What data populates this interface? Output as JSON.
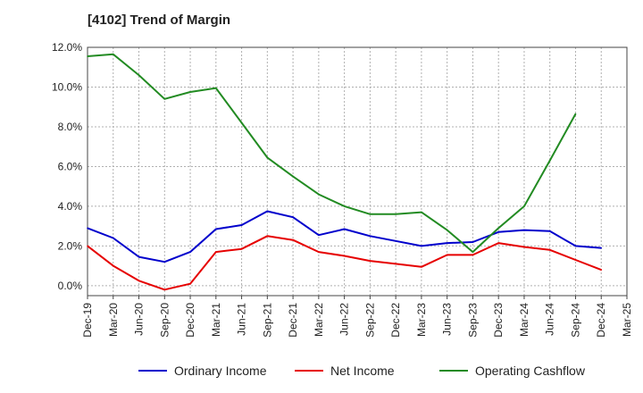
{
  "chart_data": {
    "type": "line",
    "title": "[4102]  Trend of Margin",
    "xlabel": "",
    "ylabel": "",
    "categories": [
      "Dec-19",
      "Mar-20",
      "Jun-20",
      "Sep-20",
      "Dec-20",
      "Mar-21",
      "Jun-21",
      "Sep-21",
      "Dec-21",
      "Mar-22",
      "Jun-22",
      "Sep-22",
      "Dec-22",
      "Mar-23",
      "Jun-23",
      "Sep-23",
      "Dec-23",
      "Mar-24",
      "Jun-24",
      "Sep-24",
      "Dec-24",
      "Mar-25"
    ],
    "ylim": [
      -0.5,
      12.0
    ],
    "yticks": [
      "12.0%",
      "10.0%",
      "8.0%",
      "6.0%",
      "4.0%",
      "2.0%",
      "0.0%"
    ],
    "ytick_values": [
      12,
      10,
      8,
      6,
      4,
      2,
      0
    ],
    "grid": true,
    "legend_position": "bottom",
    "series": [
      {
        "name": "Ordinary Income",
        "color": "#0000cc",
        "values": [
          2.9,
          2.4,
          1.45,
          1.2,
          1.7,
          2.85,
          3.05,
          3.75,
          3.45,
          2.55,
          2.85,
          2.5,
          2.25,
          2.0,
          2.15,
          2.2,
          2.7,
          2.8,
          2.75,
          2.0,
          1.9,
          null
        ]
      },
      {
        "name": "Net Income",
        "color": "#e60000",
        "values": [
          2.0,
          1.0,
          0.25,
          -0.2,
          0.1,
          1.7,
          1.85,
          2.5,
          2.3,
          1.7,
          1.5,
          1.25,
          1.1,
          0.95,
          1.55,
          1.55,
          2.15,
          1.95,
          1.8,
          1.3,
          0.8,
          null
        ]
      },
      {
        "name": "Operating Cashflow",
        "color": "#228b22",
        "values": [
          11.55,
          11.65,
          10.6,
          9.4,
          9.75,
          9.95,
          8.2,
          6.45,
          5.5,
          4.6,
          4.0,
          3.6,
          3.6,
          3.7,
          2.8,
          1.7,
          2.9,
          4.0,
          6.3,
          8.65,
          null,
          null
        ]
      }
    ]
  }
}
